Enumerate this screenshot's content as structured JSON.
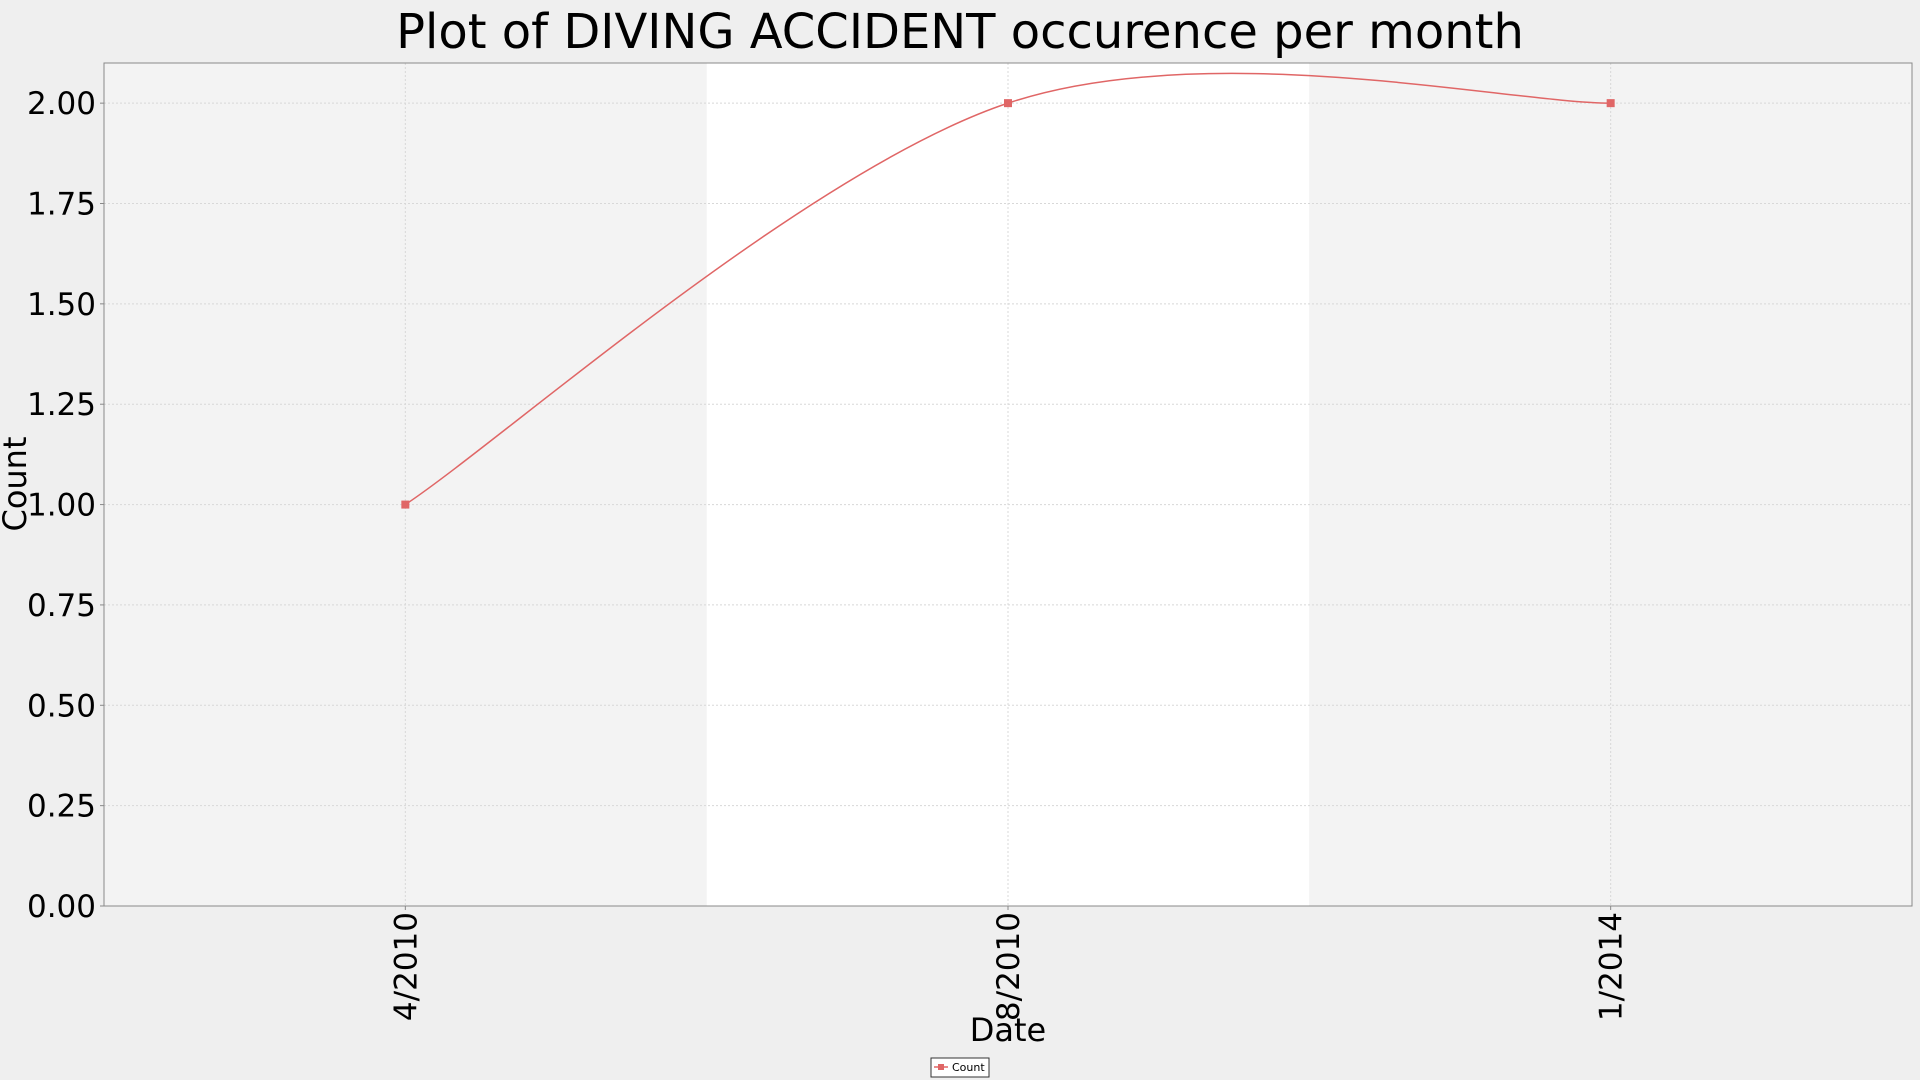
{
  "chart_data": {
    "type": "line",
    "title": "Plot of DIVING ACCIDENT occurence per month",
    "xlabel": "Date",
    "ylabel": "Count",
    "categories": [
      "4/2010",
      "8/2010",
      "1/2014"
    ],
    "series": [
      {
        "name": "Count",
        "values": [
          1,
          2,
          2
        ]
      }
    ],
    "ylim": [
      0,
      2.1
    ],
    "yticks": [
      "0.00",
      "0.25",
      "0.50",
      "0.75",
      "1.00",
      "1.25",
      "1.50",
      "1.75",
      "2.00"
    ],
    "grid": true,
    "legend_position": "bottom-center",
    "colors": {
      "series": "#e06666",
      "band_shaded": "#f3f3f3",
      "band_plain": "#ffffff",
      "frame": "#888888"
    }
  }
}
